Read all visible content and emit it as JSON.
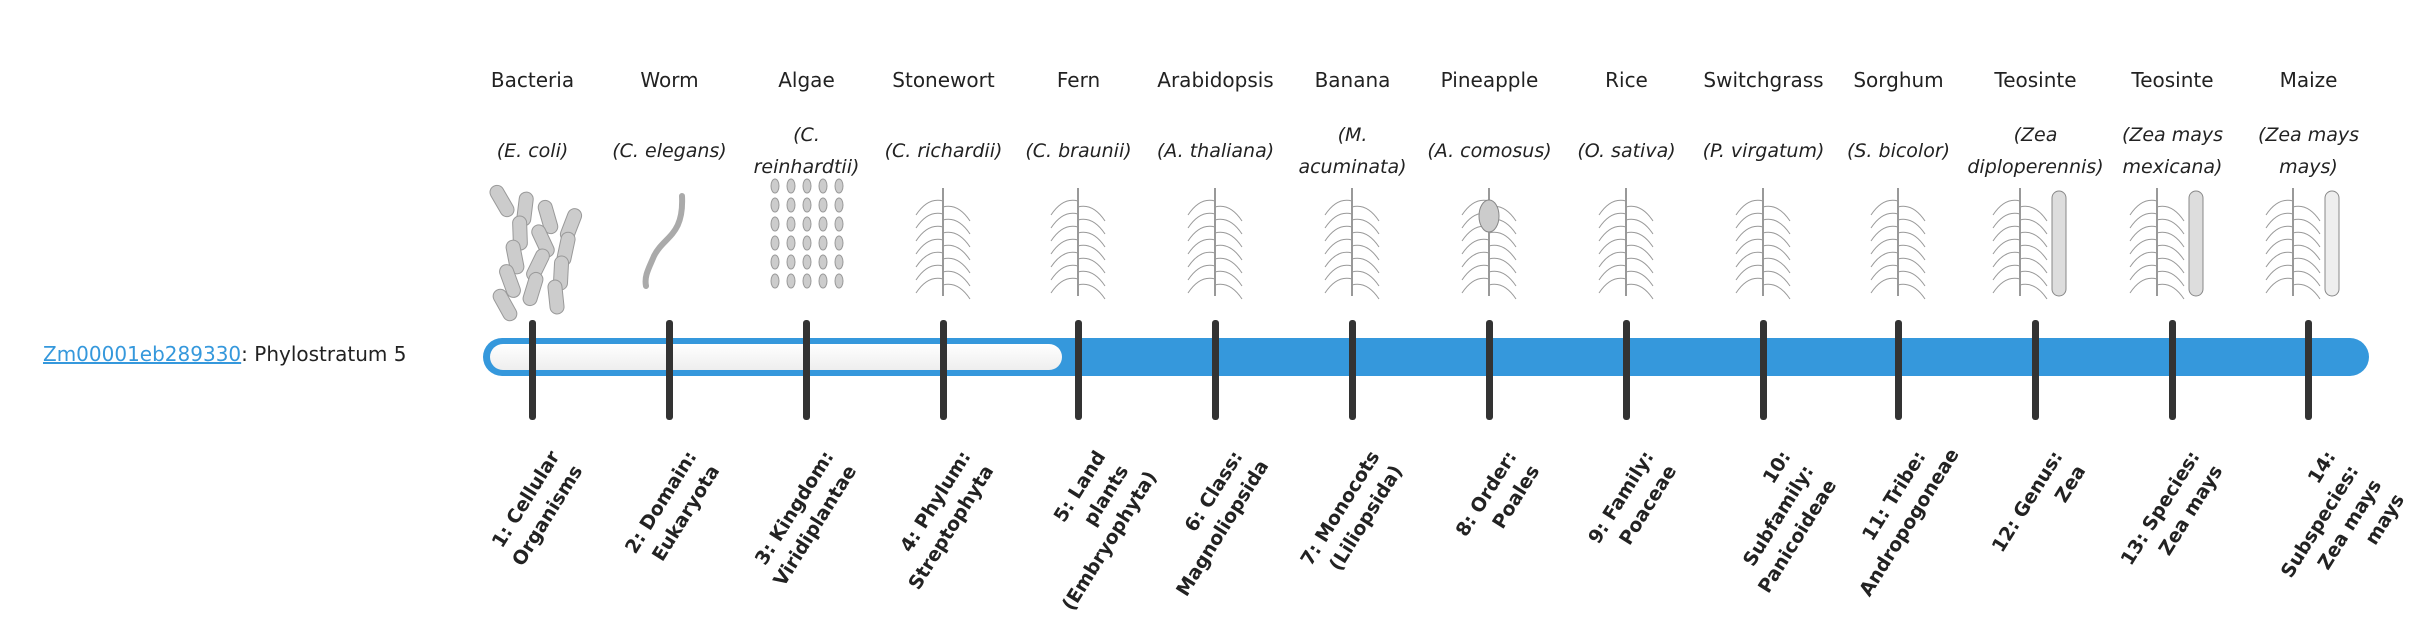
{
  "gene": {
    "id": "Zm00001eb289330",
    "suffix": ": Phylostratum 5"
  },
  "progress": {
    "current_stratum": 5,
    "total_strata": 14
  },
  "colors": {
    "accent": "#3598dc",
    "tick": "#333333",
    "empty": "#f2f2f2"
  },
  "strata": [
    {
      "name": "Bacteria",
      "sci": "(E. coli)",
      "icon": "bacteria-icon",
      "label": "1: Cellular Organisms"
    },
    {
      "name": "Worm",
      "sci": "(C. elegans)",
      "icon": "worm-icon",
      "label": "2: Domain: Eukaryota"
    },
    {
      "name": "Algae",
      "sci": "(C. reinhardtii)",
      "icon": "algae-icon",
      "label": "3: Kingdom: Viridiplantae"
    },
    {
      "name": "Stonewort",
      "sci": "(C. richardii)",
      "icon": "stonewort-icon",
      "label": "4: Phylum: Streptophyta"
    },
    {
      "name": "Fern",
      "sci": "(C. braunii)",
      "icon": "fern-icon",
      "label": "5: Land plants (Embryophyta)"
    },
    {
      "name": "Arabidopsis",
      "sci": "(A. thaliana)",
      "icon": "arabidopsis-icon",
      "label": "6: Class: Magnoliopsida"
    },
    {
      "name": "Banana",
      "sci": "(M. acuminata)",
      "icon": "banana-plant-icon",
      "label": "7: Monocots (Liliopsida)"
    },
    {
      "name": "Pineapple",
      "sci": "(A. comosus)",
      "icon": "pineapple-icon",
      "label": "8: Order: Poales"
    },
    {
      "name": "Rice",
      "sci": "(O. sativa)",
      "icon": "rice-icon",
      "label": "9: Family: Poaceae"
    },
    {
      "name": "Switchgrass",
      "sci": "(P. virgatum)",
      "icon": "switchgrass-icon",
      "label": "10: Subfamily: Panicoideae"
    },
    {
      "name": "Sorghum",
      "sci": "(S. bicolor)",
      "icon": "sorghum-icon",
      "label": "11: Tribe: Andropogoneae"
    },
    {
      "name": "Teosinte",
      "sci": "(Zea diploperennis)",
      "icon": "teosinte-icon",
      "label": "12: Genus: Zea"
    },
    {
      "name": "Teosinte",
      "sci": "(Zea mays mexicana)",
      "icon": "teosinte-icon",
      "label": "13: Species: Zea mays"
    },
    {
      "name": "Maize",
      "sci": "(Zea mays mays)",
      "icon": "maize-icon",
      "label": "14: Subspecies: Zea mays mays"
    }
  ]
}
